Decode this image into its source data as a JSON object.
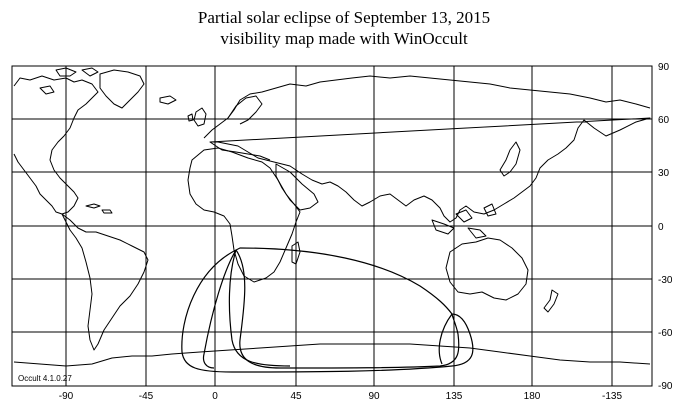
{
  "title": {
    "line1": "Partial solar eclipse of September 13, 2015",
    "line2": "visibility map made with WinOccult"
  },
  "map": {
    "projection": "equirectangular",
    "lon_ticks": [
      "-90",
      "-45",
      "0",
      "45",
      "90",
      "135",
      "180",
      "-135"
    ],
    "lat_ticks": [
      "90",
      "60",
      "30",
      "0",
      "-30",
      "-60",
      "-90"
    ],
    "grid": true,
    "credit": "Occult 4.1.0.27"
  }
}
